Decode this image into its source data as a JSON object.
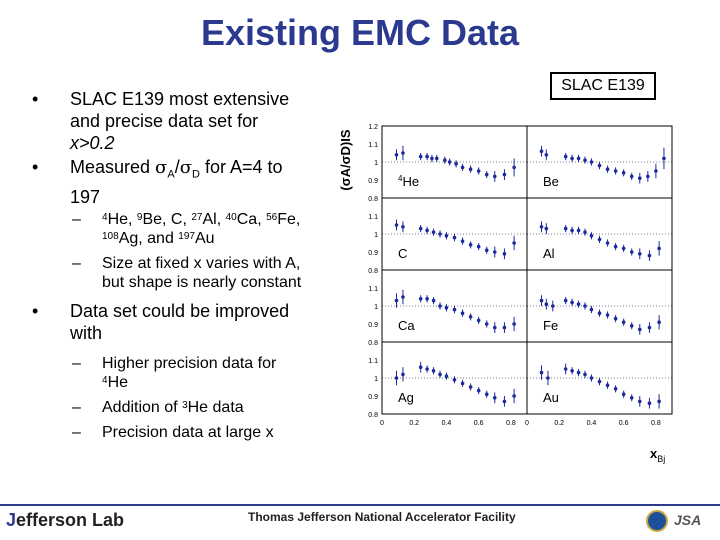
{
  "title": "Existing EMC Data",
  "slac_label": "SLAC E139",
  "bullets": {
    "b1_line1": "SLAC E139 most extensive",
    "b1_line2": "and precise data set for",
    "b1_line3": "x>0.2",
    "b2_text_a": "Measured ",
    "b2_sigma": "σ",
    "b2_sub_a": "A",
    "b2_slash": "/",
    "b2_sub_d": "D",
    "b2_text_b": " for  A=4 to",
    "b2_line2": "197",
    "sub1_sup_he": "4",
    "sub1_he": "He, ",
    "sub1_sup_be": "9",
    "sub1_be": "Be, C, ",
    "sub1_sup_al": "27",
    "sub1_al": "Al, ",
    "sub1_sup_ca": "40",
    "sub1_ca": "Ca, ",
    "sub1_sup_fe": "56",
    "sub1_fe": "Fe,",
    "sub1_sup_ag": "108",
    "sub1_ag": "Ag, and ",
    "sub1_sup_au": "197",
    "sub1_au": "Au",
    "sub2_line1": "Size at fixed x varies with A,",
    "sub2_line2": "but shape is nearly constant",
    "b3_line1": "Data set could be improved",
    "b3_line2": "with",
    "sub3_line1": "Higher precision data for",
    "sub3_sup": "4",
    "sub3_line2": "He",
    "sub4_a": "Addition of ",
    "sub4_sup": "3",
    "sub4_b": "He data",
    "sub5": "Precision data at large x"
  },
  "footer": {
    "logo_a": "J",
    "logo_b": "efferson Lab",
    "facility": "Thomas Jefferson National Accelerator Facility",
    "jsa": "JSA"
  },
  "chart_data": {
    "type": "scatter",
    "ylabel": "(σA/σD)IS",
    "xlabel": "x",
    "xlabel_sub": "Bj",
    "xlim": [
      0,
      0.9
    ],
    "ylim": [
      0.8,
      1.2
    ],
    "xticks": [
      "0",
      "0.2",
      "0.4",
      "0.6",
      "0.8"
    ],
    "yticks": [
      "0.8",
      "0.9",
      "1",
      "1.1",
      "1.2"
    ],
    "panels": [
      {
        "label": "He",
        "label_sup": "4",
        "col": 0,
        "row": 0,
        "points": [
          [
            0.09,
            1.04,
            0.03
          ],
          [
            0.13,
            1.05,
            0.04
          ],
          [
            0.24,
            1.03,
            0.02
          ],
          [
            0.28,
            1.03,
            0.02
          ],
          [
            0.31,
            1.02,
            0.02
          ],
          [
            0.34,
            1.02,
            0.02
          ],
          [
            0.39,
            1.01,
            0.02
          ],
          [
            0.42,
            1.0,
            0.02
          ],
          [
            0.46,
            0.99,
            0.02
          ],
          [
            0.5,
            0.97,
            0.02
          ],
          [
            0.55,
            0.96,
            0.02
          ],
          [
            0.6,
            0.95,
            0.02
          ],
          [
            0.65,
            0.93,
            0.02
          ],
          [
            0.7,
            0.92,
            0.03
          ],
          [
            0.76,
            0.93,
            0.03
          ],
          [
            0.82,
            0.97,
            0.05
          ]
        ]
      },
      {
        "label": "Be",
        "label_sup": "",
        "col": 1,
        "row": 0,
        "points": [
          [
            0.09,
            1.06,
            0.03
          ],
          [
            0.12,
            1.04,
            0.03
          ],
          [
            0.24,
            1.03,
            0.02
          ],
          [
            0.28,
            1.02,
            0.02
          ],
          [
            0.32,
            1.02,
            0.02
          ],
          [
            0.36,
            1.01,
            0.02
          ],
          [
            0.4,
            1.0,
            0.02
          ],
          [
            0.45,
            0.98,
            0.02
          ],
          [
            0.5,
            0.96,
            0.02
          ],
          [
            0.55,
            0.95,
            0.02
          ],
          [
            0.6,
            0.94,
            0.02
          ],
          [
            0.65,
            0.92,
            0.02
          ],
          [
            0.7,
            0.91,
            0.03
          ],
          [
            0.75,
            0.92,
            0.03
          ],
          [
            0.8,
            0.95,
            0.04
          ],
          [
            0.85,
            1.02,
            0.06
          ]
        ]
      },
      {
        "label": "C",
        "label_sup": "",
        "col": 0,
        "row": 1,
        "points": [
          [
            0.09,
            1.05,
            0.03
          ],
          [
            0.13,
            1.04,
            0.03
          ],
          [
            0.24,
            1.03,
            0.02
          ],
          [
            0.28,
            1.02,
            0.02
          ],
          [
            0.32,
            1.01,
            0.02
          ],
          [
            0.36,
            1.0,
            0.02
          ],
          [
            0.4,
            0.99,
            0.02
          ],
          [
            0.45,
            0.98,
            0.02
          ],
          [
            0.5,
            0.96,
            0.02
          ],
          [
            0.55,
            0.94,
            0.02
          ],
          [
            0.6,
            0.93,
            0.02
          ],
          [
            0.65,
            0.91,
            0.02
          ],
          [
            0.7,
            0.9,
            0.03
          ],
          [
            0.76,
            0.89,
            0.03
          ],
          [
            0.82,
            0.95,
            0.04
          ]
        ]
      },
      {
        "label": "Al",
        "label_sup": "",
        "col": 1,
        "row": 1,
        "points": [
          [
            0.09,
            1.04,
            0.03
          ],
          [
            0.12,
            1.03,
            0.03
          ],
          [
            0.24,
            1.03,
            0.02
          ],
          [
            0.28,
            1.02,
            0.02
          ],
          [
            0.32,
            1.02,
            0.02
          ],
          [
            0.36,
            1.01,
            0.02
          ],
          [
            0.4,
            0.99,
            0.02
          ],
          [
            0.45,
            0.97,
            0.02
          ],
          [
            0.5,
            0.95,
            0.02
          ],
          [
            0.55,
            0.93,
            0.02
          ],
          [
            0.6,
            0.92,
            0.02
          ],
          [
            0.65,
            0.9,
            0.02
          ],
          [
            0.7,
            0.89,
            0.03
          ],
          [
            0.76,
            0.88,
            0.03
          ],
          [
            0.82,
            0.92,
            0.04
          ]
        ]
      },
      {
        "label": "Ca",
        "label_sup": "",
        "col": 0,
        "row": 2,
        "points": [
          [
            0.09,
            1.03,
            0.04
          ],
          [
            0.13,
            1.05,
            0.04
          ],
          [
            0.24,
            1.04,
            0.02
          ],
          [
            0.28,
            1.04,
            0.02
          ],
          [
            0.32,
            1.03,
            0.02
          ],
          [
            0.36,
            1.0,
            0.02
          ],
          [
            0.4,
            0.99,
            0.02
          ],
          [
            0.45,
            0.98,
            0.02
          ],
          [
            0.5,
            0.96,
            0.02
          ],
          [
            0.55,
            0.94,
            0.02
          ],
          [
            0.6,
            0.92,
            0.02
          ],
          [
            0.65,
            0.9,
            0.02
          ],
          [
            0.7,
            0.88,
            0.03
          ],
          [
            0.76,
            0.88,
            0.03
          ],
          [
            0.82,
            0.9,
            0.04
          ]
        ]
      },
      {
        "label": "Fe",
        "label_sup": "",
        "col": 1,
        "row": 2,
        "points": [
          [
            0.09,
            1.03,
            0.03
          ],
          [
            0.12,
            1.01,
            0.03
          ],
          [
            0.16,
            1.0,
            0.03
          ],
          [
            0.24,
            1.03,
            0.02
          ],
          [
            0.28,
            1.02,
            0.02
          ],
          [
            0.32,
            1.01,
            0.02
          ],
          [
            0.36,
            1.0,
            0.02
          ],
          [
            0.4,
            0.98,
            0.02
          ],
          [
            0.45,
            0.96,
            0.02
          ],
          [
            0.5,
            0.95,
            0.02
          ],
          [
            0.55,
            0.93,
            0.02
          ],
          [
            0.6,
            0.91,
            0.02
          ],
          [
            0.65,
            0.89,
            0.02
          ],
          [
            0.7,
            0.87,
            0.03
          ],
          [
            0.76,
            0.88,
            0.03
          ],
          [
            0.82,
            0.91,
            0.04
          ]
        ]
      },
      {
        "label": "Ag",
        "label_sup": "",
        "col": 0,
        "row": 3,
        "points": [
          [
            0.09,
            1.0,
            0.04
          ],
          [
            0.13,
            1.02,
            0.04
          ],
          [
            0.24,
            1.06,
            0.03
          ],
          [
            0.28,
            1.05,
            0.02
          ],
          [
            0.32,
            1.04,
            0.02
          ],
          [
            0.36,
            1.02,
            0.02
          ],
          [
            0.4,
            1.01,
            0.02
          ],
          [
            0.45,
            0.99,
            0.02
          ],
          [
            0.5,
            0.97,
            0.02
          ],
          [
            0.55,
            0.95,
            0.02
          ],
          [
            0.6,
            0.93,
            0.02
          ],
          [
            0.65,
            0.91,
            0.02
          ],
          [
            0.7,
            0.89,
            0.03
          ],
          [
            0.76,
            0.87,
            0.03
          ],
          [
            0.82,
            0.9,
            0.04
          ]
        ]
      },
      {
        "label": "Au",
        "label_sup": "",
        "col": 1,
        "row": 3,
        "points": [
          [
            0.09,
            1.03,
            0.04
          ],
          [
            0.13,
            1.0,
            0.04
          ],
          [
            0.24,
            1.05,
            0.03
          ],
          [
            0.28,
            1.04,
            0.02
          ],
          [
            0.32,
            1.03,
            0.02
          ],
          [
            0.36,
            1.02,
            0.02
          ],
          [
            0.4,
            1.0,
            0.02
          ],
          [
            0.45,
            0.98,
            0.02
          ],
          [
            0.5,
            0.96,
            0.02
          ],
          [
            0.55,
            0.94,
            0.02
          ],
          [
            0.6,
            0.91,
            0.02
          ],
          [
            0.65,
            0.89,
            0.02
          ],
          [
            0.7,
            0.87,
            0.03
          ],
          [
            0.76,
            0.86,
            0.03
          ],
          [
            0.82,
            0.87,
            0.04
          ]
        ]
      }
    ]
  },
  "colors": {
    "title": "#2b3a8f",
    "marker": "#1d2a9e"
  }
}
